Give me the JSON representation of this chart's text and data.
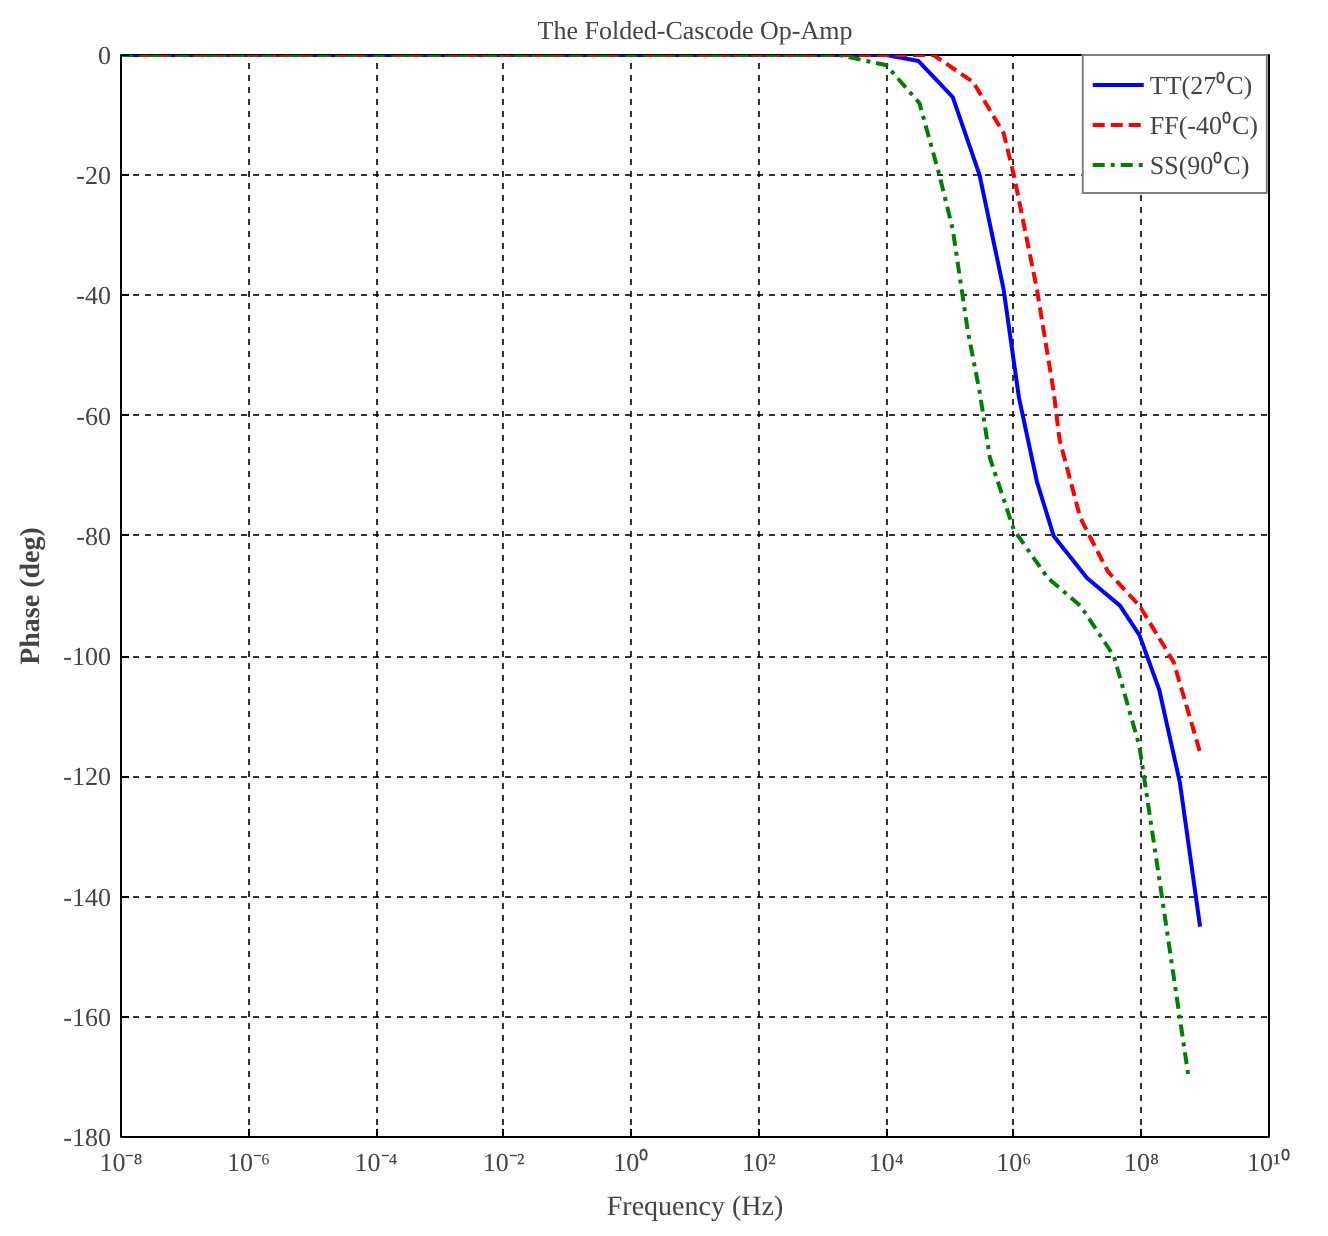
{
  "chart_data": {
    "type": "line",
    "title": "The Folded-Cascode Op-Amp",
    "xlabel": "Frequency (Hz)",
    "ylabel": "Phase (deg)",
    "log": "x",
    "grid": true,
    "legend": "top right",
    "xlim": [
      1e-08,
      10000000000.0
    ],
    "xticks": [
      {
        "value": 1e-08,
        "label": "10⁻⁸"
      },
      {
        "value": 1e-06,
        "label": "10⁻⁶"
      },
      {
        "value": 0.0001,
        "label": "10⁻⁴"
      },
      {
        "value": 0.01,
        "label": "10⁻²"
      },
      {
        "value": 1,
        "label": "10⁰"
      },
      {
        "value": 100,
        "label": "10²"
      },
      {
        "value": 10000.0,
        "label": "10⁴"
      },
      {
        "value": 1000000.0,
        "label": "10⁶"
      },
      {
        "value": 100000000.0,
        "label": "10⁸"
      },
      {
        "value": 10000000000.0,
        "label": "10¹⁰"
      }
    ],
    "ylim": [
      -180,
      0
    ],
    "yticks": [
      -180,
      -160,
      -140,
      -120,
      -100,
      -80,
      -60,
      -40,
      -20,
      0
    ],
    "series": [
      {
        "name": "TT(27⁰C)",
        "color": "#0000ff",
        "line_style": "solid",
        "x": [
          1e-08,
          1000.0,
          10000.0,
          32000.0,
          110000.0,
          290000.0,
          690000.0,
          1200000.0,
          2300000.0,
          4200000.0,
          14000000.0,
          46000000.0,
          93000000.0,
          190000000.0,
          400000000.0,
          830000000.0
        ],
        "values": [
          0,
          0,
          0,
          -1,
          -7,
          -20,
          -39,
          -57,
          -71,
          -80,
          -87,
          -91.6,
          -96.5,
          -105.6,
          -121,
          -145
        ]
      },
      {
        "name": "FF(-40⁰C)",
        "color": "#ff0000",
        "line_style": "dashed",
        "x": [
          1e-08,
          10000.0,
          55000.0,
          230000.0,
          690000.0,
          1000000.0,
          2300000.0,
          4200000.0,
          5200000.0,
          11000000.0,
          30000000.0,
          93000000.0,
          320000000.0,
          830000000.0
        ],
        "values": [
          0,
          0,
          0,
          -4.5,
          -13,
          -20,
          -39,
          -56,
          -64,
          -77,
          -86,
          -91.6,
          -101,
          -116
        ]
      },
      {
        "name": "SS(90⁰C)",
        "color": "#008000",
        "line_style": "dashdot",
        "x": [
          1e-08,
          1800.0,
          10000.0,
          33000.0,
          68000.0,
          110000.0,
          190000.0,
          290000.0,
          420000.0,
          1000000.0,
          3400000.0,
          11000000.0,
          37000000.0,
          93000000.0,
          190000000.0,
          540000000.0
        ],
        "values": [
          0,
          0,
          -1.7,
          -8,
          -20,
          -29,
          -46,
          -56,
          -67,
          -79,
          -87,
          -91.6,
          -100,
          -115,
          -137,
          -169.6
        ]
      }
    ]
  }
}
